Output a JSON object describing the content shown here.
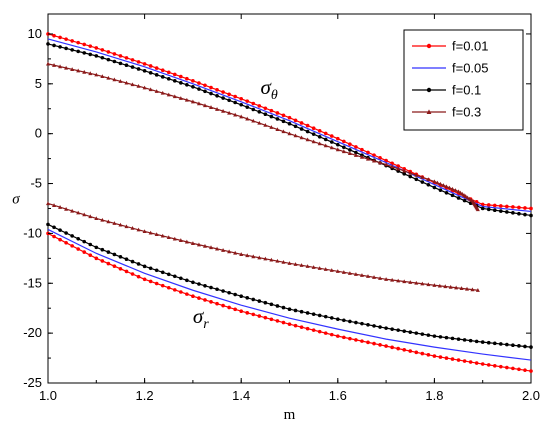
{
  "chart_data": {
    "type": "line",
    "xlabel": "m",
    "ylabel": "σ",
    "xlim": [
      1.0,
      2.0
    ],
    "ylim": [
      -25,
      12
    ],
    "xticks": [
      "1.0",
      "1.2",
      "1.4",
      "1.6",
      "1.8",
      "2.0"
    ],
    "yticks": [
      "10",
      "5",
      "0",
      "-5",
      "-10",
      "-15",
      "-20",
      "-25"
    ],
    "grid": false,
    "legend_position": "top-right",
    "annotations": [
      {
        "text": "σ",
        "sub": "θ",
        "x": 1.44,
        "y": 4.0
      },
      {
        "text": "σ",
        "sub": "r",
        "x": 1.3,
        "y": -19.0
      }
    ],
    "series": [
      {
        "name": "f=0.01",
        "color": "#ff0000",
        "line_color": "#ff0000",
        "marker": "circle",
        "components": [
          {
            "label": "σθ",
            "x": [
              1.0,
              1.1,
              1.2,
              1.3,
              1.4,
              1.5,
              1.6,
              1.7,
              1.8,
              1.9,
              2.0
            ],
            "y": [
              10.0,
              8.6,
              7.0,
              5.3,
              3.5,
              1.6,
              -0.5,
              -2.7,
              -4.9,
              -7.1,
              -7.5
            ]
          },
          {
            "label": "σr",
            "x": [
              1.0,
              1.1,
              1.2,
              1.3,
              1.4,
              1.5,
              1.6,
              1.7,
              1.8,
              1.9,
              2.0
            ],
            "y": [
              -10.0,
              -12.5,
              -14.6,
              -16.3,
              -17.8,
              -19.1,
              -20.3,
              -21.3,
              -22.3,
              -23.1,
              -23.8
            ]
          }
        ]
      },
      {
        "name": "f=0.05",
        "color": "#3333ff",
        "line_color": "#3333ff",
        "marker": "none",
        "components": [
          {
            "label": "σθ",
            "x": [
              1.0,
              1.1,
              1.2,
              1.3,
              1.4,
              1.5,
              1.6,
              1.7,
              1.8,
              1.9,
              2.0
            ],
            "y": [
              9.5,
              8.2,
              6.7,
              5.0,
              3.2,
              1.3,
              -0.8,
              -2.9,
              -5.1,
              -7.3,
              -7.8
            ]
          },
          {
            "label": "σr",
            "x": [
              1.0,
              1.1,
              1.2,
              1.3,
              1.4,
              1.5,
              1.6,
              1.7,
              1.8,
              1.9,
              2.0
            ],
            "y": [
              -9.6,
              -12.0,
              -14.0,
              -15.7,
              -17.2,
              -18.5,
              -19.6,
              -20.6,
              -21.4,
              -22.1,
              -22.7
            ]
          }
        ]
      },
      {
        "name": "f=0.1",
        "color": "#000000",
        "line_color": "#000000",
        "marker": "circle",
        "components": [
          {
            "label": "σθ",
            "x": [
              1.0,
              1.1,
              1.2,
              1.3,
              1.4,
              1.5,
              1.6,
              1.7,
              1.8,
              1.9,
              2.0
            ],
            "y": [
              9.0,
              7.8,
              6.3,
              4.7,
              2.9,
              1.0,
              -1.1,
              -3.2,
              -5.4,
              -7.5,
              -8.2
            ]
          },
          {
            "label": "σr",
            "x": [
              1.0,
              1.1,
              1.2,
              1.3,
              1.4,
              1.5,
              1.6,
              1.7,
              1.8,
              1.9,
              2.0
            ],
            "y": [
              -9.1,
              -11.4,
              -13.3,
              -14.9,
              -16.3,
              -17.6,
              -18.6,
              -19.5,
              -20.3,
              -20.9,
              -21.4
            ]
          }
        ]
      },
      {
        "name": "f=0.3",
        "color": "#8b1a1a",
        "line_color": "#8b1a1a",
        "marker": "triangle",
        "components": [
          {
            "label": "σθ",
            "x": [
              1.0,
              1.1,
              1.2,
              1.3,
              1.4,
              1.5,
              1.6,
              1.7,
              1.8,
              1.85,
              1.88,
              1.89
            ],
            "y": [
              7.0,
              5.9,
              4.6,
              3.2,
              1.7,
              0.0,
              -1.6,
              -3.1,
              -4.8,
              -5.8,
              -6.8,
              -7.6
            ]
          },
          {
            "label": "σr",
            "x": [
              1.0,
              1.1,
              1.2,
              1.3,
              1.4,
              1.5,
              1.6,
              1.7,
              1.8,
              1.89
            ],
            "y": [
              -7.0,
              -8.5,
              -9.8,
              -11.0,
              -12.1,
              -13.0,
              -13.8,
              -14.6,
              -15.2,
              -15.7
            ]
          }
        ]
      }
    ]
  }
}
